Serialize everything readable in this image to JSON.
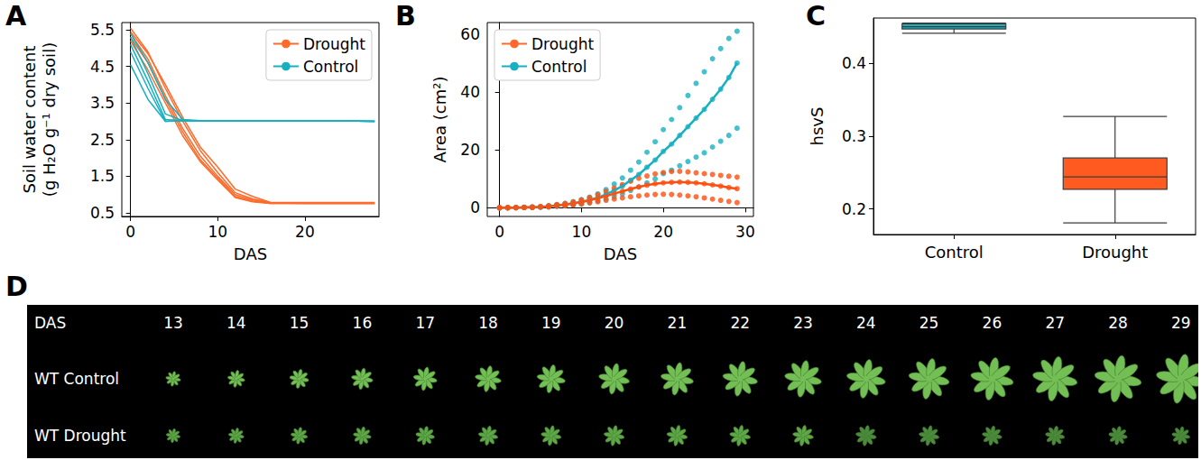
{
  "chart_data": [
    {
      "type": "line",
      "label": "A",
      "x_label": "DAS",
      "y_label": "Soil water content\n(g H₂O g⁻¹ dry soil)",
      "x": [
        0,
        2,
        4,
        6,
        8,
        10,
        12,
        14,
        16,
        20,
        24,
        28
      ],
      "xlim": [
        -1,
        28.5
      ],
      "xticks": [
        0,
        10,
        20
      ],
      "ylim": [
        0.4,
        5.7
      ],
      "yticks": [
        0.5,
        1.5,
        2.5,
        3.5,
        4.5,
        5.5
      ],
      "grid": false,
      "legend": "upper right",
      "line_style": "solid",
      "series": [
        {
          "name": "Drought",
          "color": "#ff6a2a",
          "values": [
            5.55,
            4.9,
            3.9,
            3.0,
            2.2,
            1.6,
            1.05,
            0.88,
            0.78,
            0.77,
            0.77,
            0.77
          ]
        },
        {
          "name": "Drought",
          "color": "#ff6a2a",
          "values": [
            5.4,
            4.7,
            3.7,
            2.8,
            2.05,
            1.5,
            1.0,
            0.85,
            0.77,
            0.76,
            0.76,
            0.76
          ]
        },
        {
          "name": "Drought",
          "color": "#ff6a2a",
          "values": [
            5.3,
            4.6,
            3.6,
            2.7,
            1.95,
            1.45,
            0.95,
            0.82,
            0.76,
            0.76,
            0.76,
            0.76
          ]
        },
        {
          "name": "Drought",
          "color": "#ff6a2a",
          "values": [
            5.2,
            4.4,
            3.5,
            2.6,
            1.9,
            1.4,
            0.92,
            0.8,
            0.76,
            0.76,
            0.76,
            0.76
          ]
        },
        {
          "name": "Drought",
          "color": "#ff6a2a",
          "values": [
            5.45,
            4.85,
            4.0,
            3.1,
            2.3,
            1.75,
            1.15,
            0.95,
            0.79,
            0.78,
            0.78,
            0.78
          ]
        },
        {
          "name": "Control",
          "color": "#17b0c0",
          "values": [
            5.3,
            4.3,
            3.2,
            3.02,
            3.02,
            3.01,
            3.01,
            3.01,
            3.01,
            3.01,
            3.01,
            3.0
          ]
        },
        {
          "name": "Control",
          "color": "#17b0c0",
          "values": [
            5.1,
            4.1,
            3.05,
            3.02,
            3.02,
            3.01,
            3.01,
            3.01,
            3.01,
            3.01,
            3.01,
            3.0
          ]
        },
        {
          "name": "Control",
          "color": "#17b0c0",
          "values": [
            4.9,
            3.9,
            3.0,
            3.02,
            3.02,
            3.01,
            3.01,
            3.01,
            3.01,
            3.01,
            3.01,
            3.0
          ]
        },
        {
          "name": "Control",
          "color": "#17b0c0",
          "values": [
            4.55,
            3.6,
            3.0,
            3.01,
            3.01,
            3.01,
            3.01,
            3.01,
            3.01,
            3.01,
            3.01,
            3.0
          ]
        },
        {
          "name": "Control",
          "color": "#17b0c0",
          "values": [
            5.4,
            4.6,
            3.6,
            3.05,
            3.02,
            3.01,
            3.01,
            3.01,
            3.01,
            3.01,
            3.01,
            3.0
          ]
        }
      ]
    },
    {
      "type": "line",
      "label": "B",
      "x_label": "DAS",
      "y_label": "Area (cm²)",
      "x": [
        0,
        1,
        2,
        3,
        4,
        5,
        6,
        7,
        8,
        9,
        10,
        11,
        12,
        13,
        14,
        15,
        16,
        17,
        18,
        19,
        20,
        21,
        22,
        23,
        24,
        25,
        26,
        27,
        28,
        29
      ],
      "xlim": [
        -1.5,
        31
      ],
      "xticks": [
        0,
        10,
        20,
        30
      ],
      "ylim": [
        -3,
        64
      ],
      "yticks": [
        0,
        20,
        40,
        60
      ],
      "grid": false,
      "legend": "upper left",
      "marker": "circle",
      "line_style": "solid",
      "series": [
        {
          "name": "Drought",
          "color": "#ff4f0f",
          "values": [
            0,
            0,
            0,
            0.1,
            0.2,
            0.3,
            0.5,
            0.8,
            1.1,
            1.5,
            2.0,
            2.6,
            3.3,
            4.1,
            4.9,
            5.7,
            6.5,
            7.2,
            7.8,
            8.3,
            8.6,
            8.8,
            8.9,
            8.8,
            8.6,
            8.3,
            7.9,
            7.5,
            7.0,
            6.6
          ],
          "points": [
            [
              0,
              0,
              0
            ],
            [
              0,
              0,
              0.1
            ],
            [
              0,
              0.1,
              0.1
            ],
            [
              0.1,
              0.1,
              0.2
            ],
            [
              0.1,
              0.2,
              0.3
            ],
            [
              0.2,
              0.3,
              0.4
            ],
            [
              0.3,
              0.5,
              0.7
            ],
            [
              0.5,
              0.8,
              1.1
            ],
            [
              0.7,
              1.1,
              1.5
            ],
            [
              1.0,
              1.5,
              2.0
            ],
            [
              1.3,
              2.0,
              2.7
            ],
            [
              1.7,
              2.6,
              3.5
            ],
            [
              2.1,
              3.3,
              4.5
            ],
            [
              2.6,
              4.1,
              5.6
            ],
            [
              3.0,
              4.9,
              6.8
            ],
            [
              3.4,
              5.7,
              8.0
            ],
            [
              3.8,
              6.5,
              9.2
            ],
            [
              4.1,
              7.2,
              10.2
            ],
            [
              4.4,
              7.8,
              11.0
            ],
            [
              4.6,
              8.3,
              11.7
            ],
            [
              4.7,
              8.6,
              12.2
            ],
            [
              4.6,
              8.8,
              12.5
            ],
            [
              4.4,
              8.9,
              12.6
            ],
            [
              4.1,
              8.8,
              12.4
            ],
            [
              3.8,
              8.6,
              12.1
            ],
            [
              3.4,
              8.3,
              11.8
            ],
            [
              3.0,
              7.9,
              11.5
            ],
            [
              2.6,
              7.5,
              11.2
            ],
            [
              2.2,
              7.0,
              10.9
            ],
            [
              1.8,
              6.6,
              10.6
            ]
          ]
        },
        {
          "name": "Control",
          "color": "#17b0c0",
          "values": [
            0,
            0,
            0,
            0.1,
            0.2,
            0.3,
            0.5,
            0.8,
            1.1,
            1.5,
            2.0,
            2.7,
            3.5,
            4.6,
            6.0,
            7.5,
            9.5,
            11.5,
            14.0,
            16.5,
            19.5,
            22.0,
            25.0,
            28.0,
            31.0,
            34.0,
            37.5,
            41.0,
            45.0,
            50.0
          ],
          "points": [
            [
              0,
              0,
              0
            ],
            [
              0,
              0,
              0.1
            ],
            [
              0,
              0.1,
              0.1
            ],
            [
              0.1,
              0.1,
              0.2
            ],
            [
              0.1,
              0.2,
              0.3
            ],
            [
              0.2,
              0.3,
              0.4
            ],
            [
              0.3,
              0.5,
              0.7
            ],
            [
              0.5,
              0.8,
              1.1
            ],
            [
              0.7,
              1.1,
              1.5
            ],
            [
              1.0,
              1.5,
              2.1
            ],
            [
              1.3,
              2.0,
              2.8
            ],
            [
              1.8,
              2.7,
              3.7
            ],
            [
              2.3,
              3.5,
              4.8
            ],
            [
              3.0,
              4.6,
              6.3
            ],
            [
              3.9,
              6.0,
              8.2
            ],
            [
              4.8,
              7.5,
              10.3
            ],
            [
              6.0,
              9.5,
              13.0
            ],
            [
              7.2,
              11.5,
              15.8
            ],
            [
              8.6,
              14.0,
              19.2
            ],
            [
              10.0,
              16.5,
              22.8
            ],
            [
              11.8,
              19.5,
              27.0
            ],
            [
              13.0,
              22.0,
              30.5
            ],
            [
              14.5,
              25.0,
              34.6
            ],
            [
              16.0,
              28.0,
              38.8
            ],
            [
              17.5,
              31.0,
              43.0
            ],
            [
              19.0,
              34.0,
              47.0
            ],
            [
              21.0,
              37.5,
              51.5
            ],
            [
              23.0,
              41.0,
              55.0
            ],
            [
              25.0,
              45.0,
              58.5
            ],
            [
              27.5,
              50.0,
              61.0
            ]
          ]
        }
      ]
    },
    {
      "type": "boxplot",
      "label": "C",
      "y_label": "hsvS",
      "categories": [
        "Control",
        "Drought"
      ],
      "values": [
        [
          0.441,
          0.447,
          0.45,
          0.454,
          0.455
        ],
        [
          0.181,
          0.227,
          0.244,
          0.27,
          0.327
        ]
      ],
      "colors": [
        "#17b0c0",
        "#ff5a1f"
      ],
      "ylim": [
        0.165,
        0.462
      ],
      "yticks": [
        0.2,
        0.3,
        0.4
      ],
      "grid": false
    }
  ],
  "image_strip": {
    "label": "D",
    "header": "DAS",
    "columns": [
      13,
      14,
      15,
      16,
      17,
      18,
      19,
      20,
      21,
      22,
      23,
      24,
      25,
      26,
      27,
      28,
      29
    ],
    "rows": [
      {
        "label": "WT Control",
        "series": "Control"
      },
      {
        "label": "WT Drought",
        "series": "Drought"
      }
    ]
  }
}
